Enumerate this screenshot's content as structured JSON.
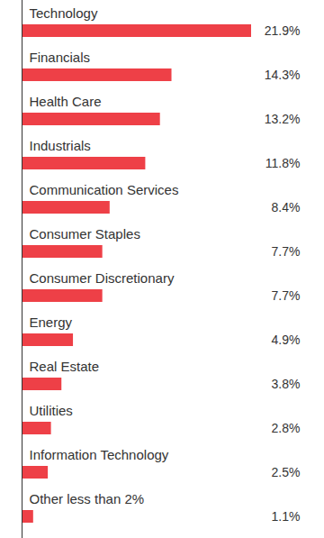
{
  "chart_data": {
    "type": "bar",
    "orientation": "horizontal",
    "categories": [
      "Technology",
      "Financials",
      "Health Care",
      "Industrials",
      "Communication Services",
      "Consumer Staples",
      "Consumer Discretionary",
      "Energy",
      "Real Estate",
      "Utilities",
      "Information Technology",
      "Other less than 2%"
    ],
    "values": [
      21.9,
      14.3,
      13.2,
      11.8,
      8.4,
      7.7,
      7.7,
      4.9,
      3.8,
      2.8,
      2.5,
      1.1
    ],
    "value_labels": [
      "21.9%",
      "14.3%",
      "13.2%",
      "11.8%",
      "8.4%",
      "7.7%",
      "7.7%",
      "4.9%",
      "3.8%",
      "2.8%",
      "2.5%",
      "1.1%"
    ],
    "color": "#ee4047",
    "data_labels": true,
    "tick_labels": false,
    "grid": false
  }
}
